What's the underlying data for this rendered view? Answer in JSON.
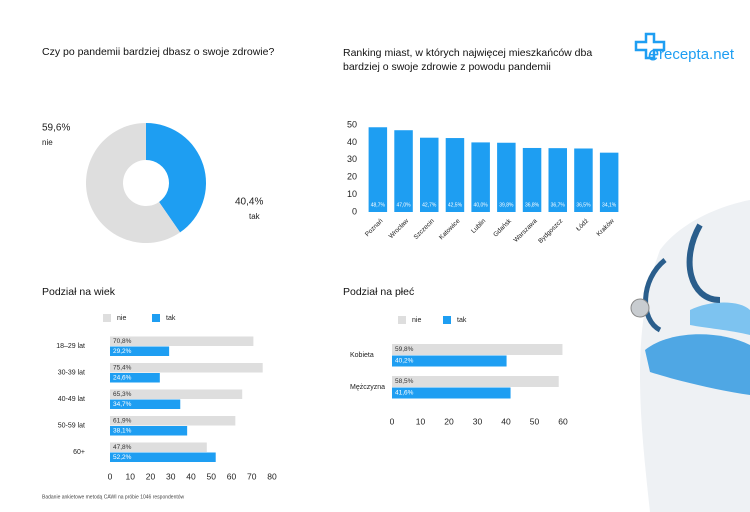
{
  "logo": "recepta.net",
  "footer": "Badanie ankietowe metodą CAWI na próbie 1046 respondentów",
  "chart_data": [
    {
      "type": "pie",
      "donut": true,
      "title": "Czy po pandemii bardziej dbasz o swoje zdrowie?",
      "categories": [
        "nie",
        "tak"
      ],
      "values": [
        59.6,
        40.4
      ],
      "value_labels": [
        "59,6%",
        "40,4%"
      ],
      "colors": [
        "#dedede",
        "#1e9ef2"
      ]
    },
    {
      "type": "bar",
      "title": "Ranking miast, w których najwięcej mieszkańców dba bardziej o swoje zdrowie z powodu pandemii",
      "categories": [
        "Poznań",
        "Wrocław",
        "Szczecin",
        "Katowice",
        "Lublin",
        "Gdańsk",
        "Warszawa",
        "Bydgoszcz",
        "Łódź",
        "Kraków"
      ],
      "values": [
        48.7,
        47.0,
        42.7,
        42.5,
        40.0,
        39.8,
        36.8,
        36.7,
        36.5,
        34.1
      ],
      "value_labels": [
        "48,7%",
        "47,0%",
        "42,7%",
        "42,5%",
        "40,0%",
        "39,8%",
        "36,8%",
        "36,7%",
        "36,5%",
        "34,1%"
      ],
      "color": "#1e9ef2",
      "ylim": [
        0,
        50
      ],
      "yticks": [
        0,
        10,
        20,
        30,
        40,
        50
      ]
    },
    {
      "type": "hbar",
      "title": "Podział na wiek",
      "categories": [
        "18–29 lat",
        "30-39 lat",
        "40-49 lat",
        "50-59 lat",
        "60+"
      ],
      "series": [
        {
          "name": "nie",
          "color": "#dedede",
          "values": [
            70.8,
            75.4,
            65.3,
            61.9,
            47.8
          ],
          "value_labels": [
            "70,8%",
            "75,4%",
            "65,3%",
            "61,9%",
            "47,8%"
          ]
        },
        {
          "name": "tak",
          "color": "#1e9ef2",
          "values": [
            29.2,
            24.6,
            34.7,
            38.1,
            52.2
          ],
          "value_labels": [
            "29,2%",
            "24,6%",
            "34,7%",
            "38,1%",
            "52,2%"
          ]
        }
      ],
      "xlim": [
        0,
        80
      ],
      "xticks": [
        0,
        10,
        20,
        30,
        40,
        50,
        60,
        70,
        80
      ]
    },
    {
      "type": "hbar",
      "title": "Podział na płeć",
      "categories": [
        "Kobieta",
        "Mężczyzna"
      ],
      "series": [
        {
          "name": "nie",
          "color": "#dedede",
          "values": [
            59.8,
            58.5
          ],
          "value_labels": [
            "59,8%",
            "58,5%"
          ]
        },
        {
          "name": "tak",
          "color": "#1e9ef2",
          "values": [
            40.2,
            41.6
          ],
          "value_labels": [
            "40,2%",
            "41,6%"
          ]
        }
      ],
      "xlim": [
        0,
        60
      ],
      "xticks": [
        0,
        10,
        20,
        30,
        40,
        50,
        60
      ]
    }
  ]
}
